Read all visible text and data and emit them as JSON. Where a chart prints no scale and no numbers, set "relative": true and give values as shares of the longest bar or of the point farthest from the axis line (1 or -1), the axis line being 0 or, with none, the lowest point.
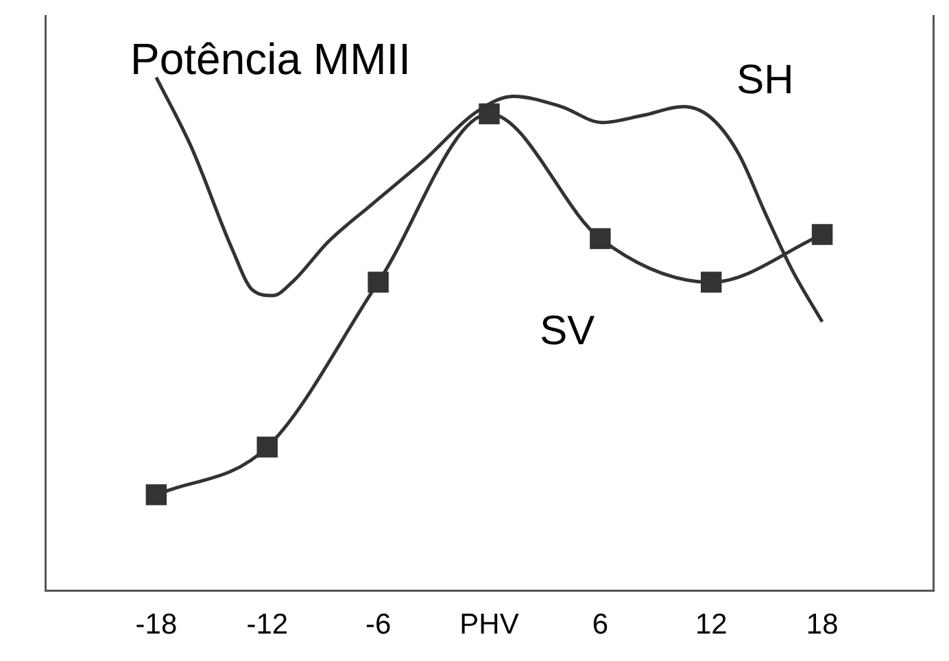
{
  "chart_data": {
    "type": "line",
    "title": "Potência MMII",
    "relative": true,
    "xlim": [
      -24,
      24
    ],
    "xticks": [
      -18,
      -12,
      -6,
      {
        "value": 0,
        "label": "PHV"
      },
      6,
      12,
      18
    ],
    "grid": false,
    "legend": false,
    "line_style": "solid",
    "series": [
      {
        "name": "SH",
        "color": "#333333",
        "marker": "none",
        "x": [
          -18,
          -16.1,
          -13.9,
          -12.8,
          -11.7,
          -10.6,
          -8.7,
          -6.4,
          -3.6,
          -0.6,
          1.3,
          3.9,
          6.1,
          8.3,
          10.5,
          12,
          13.5,
          14.9,
          16.4,
          18
        ],
        "values": [
          1.0,
          0.864,
          0.666,
          0.586,
          0.575,
          0.603,
          0.68,
          0.751,
          0.836,
          0.935,
          0.963,
          0.943,
          0.912,
          0.926,
          0.943,
          0.921,
          0.85,
          0.737,
          0.623,
          0.524
        ]
      },
      {
        "name": "SV",
        "color": "#333333",
        "marker": "square",
        "x": [
          -18,
          -12,
          -6,
          0,
          6,
          12,
          18
        ],
        "values": [
          0.187,
          0.28,
          0.601,
          0.929,
          0.686,
          0.601,
          0.694
        ]
      }
    ]
  }
}
